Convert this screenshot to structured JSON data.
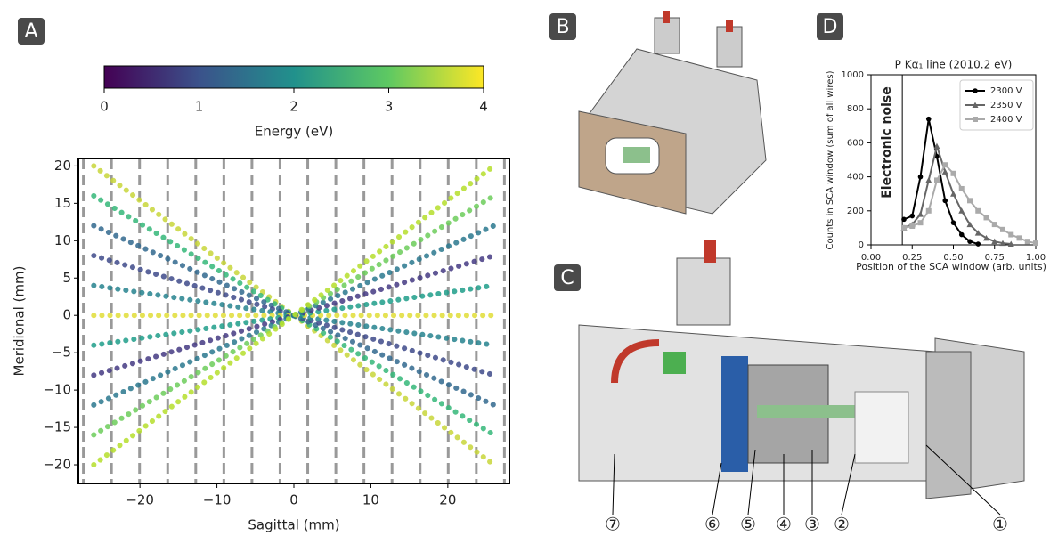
{
  "panel_labels": [
    "A",
    "B",
    "C",
    "D"
  ],
  "callouts": [
    "⑦",
    "⑥",
    "⑤",
    "④",
    "③",
    "②",
    "①"
  ],
  "chart_data": [
    {
      "type": "line",
      "xlabel": "Sagittal (mm)",
      "ylabel": "Meridional (mm)",
      "xlim": [
        -28,
        28
      ],
      "ylim": [
        -22.5,
        21
      ],
      "xticks": [
        {
          "value": -20,
          "label": "−20"
        },
        {
          "value": -10,
          "label": "−10"
        },
        0,
        10,
        20
      ],
      "yticks": [
        {
          "value": -20,
          "label": "−20"
        },
        {
          "value": -15,
          "label": "−15"
        },
        {
          "value": -10,
          "label": "−10"
        },
        {
          "value": -5,
          "label": "−5"
        },
        0,
        5,
        10,
        15,
        20
      ],
      "vlines": [
        -27.35,
        -23.7,
        -20.05,
        -16.4,
        -12.75,
        -9.1,
        -5.45,
        -1.8,
        1.8,
        5.45,
        9.1,
        12.75,
        16.4,
        20.05,
        23.7,
        27.35
      ],
      "x": [
        -26,
        26
      ],
      "series": [
        {
          "color": "#c8d63a",
          "values": [
            20,
            -20
          ]
        },
        {
          "color": "#35b779",
          "values": [
            16,
            -16
          ]
        },
        {
          "color": "#31688e",
          "values": [
            12,
            -12
          ]
        },
        {
          "color": "#3e4a89",
          "values": [
            8,
            -8
          ]
        },
        {
          "color": "#26828e",
          "values": [
            4,
            -4
          ]
        },
        {
          "color": "#e1dd37",
          "values": [
            0,
            0
          ]
        },
        {
          "color": "#1f9e89",
          "values": [
            -4,
            4
          ]
        },
        {
          "color": "#443983",
          "values": [
            -8,
            8
          ]
        },
        {
          "color": "#2a788e",
          "values": [
            -12,
            12
          ]
        },
        {
          "color": "#6ccd5a",
          "values": [
            -16,
            16
          ]
        },
        {
          "color": "#b5de2b",
          "values": [
            -20,
            20
          ]
        }
      ],
      "colorbar": {
        "label": "Energy (eV)",
        "lim": [
          0,
          4
        ],
        "ticks": [
          0,
          1,
          2,
          3,
          4
        ],
        "colors": [
          "#440154",
          "#3b528b",
          "#21918c",
          "#5ec962",
          "#fde725"
        ]
      }
    },
    {
      "type": "line",
      "title": "P Kα₁ line (2010.2 eV)",
      "xlabel": "Position of the SCA window (arb. units)",
      "ylabel": "Counts in SCA window (sum of all wires)",
      "annotation": "Electronic noise",
      "noise_limit": 0.19,
      "xlim": [
        0,
        1
      ],
      "ylim": [
        0,
        1000
      ],
      "xticks": [
        {
          "value": 0,
          "label": "0.00"
        },
        {
          "value": 0.25,
          "label": "0.25"
        },
        {
          "value": 0.5,
          "label": "0.50"
        },
        {
          "value": 0.75,
          "label": "0.75"
        },
        {
          "value": 1,
          "label": "1.00"
        }
      ],
      "yticks": [
        0,
        200,
        400,
        600,
        800,
        1000
      ],
      "legend": "upper right",
      "x": [
        0.2,
        0.25,
        0.3,
        0.35,
        0.4,
        0.45,
        0.5,
        0.55,
        0.6,
        0.65,
        0.7,
        0.75,
        0.8,
        0.85,
        0.9,
        0.95,
        1.0
      ],
      "series": [
        {
          "name": "2300 V",
          "color": "#000000",
          "marker": "circle",
          "values": [
            150,
            170,
            400,
            740,
            520,
            260,
            130,
            60,
            20,
            5,
            null,
            null,
            null,
            null,
            null,
            null,
            null
          ]
        },
        {
          "name": "2350 V",
          "color": "#666666",
          "marker": "triangle",
          "values": [
            100,
            120,
            180,
            380,
            580,
            430,
            300,
            200,
            120,
            70,
            40,
            20,
            10,
            5,
            null,
            null,
            null
          ]
        },
        {
          "name": "2400 V",
          "color": "#aaaaaa",
          "marker": "square",
          "values": [
            100,
            110,
            130,
            200,
            380,
            470,
            420,
            330,
            260,
            200,
            160,
            120,
            90,
            60,
            40,
            20,
            10
          ]
        }
      ]
    }
  ]
}
